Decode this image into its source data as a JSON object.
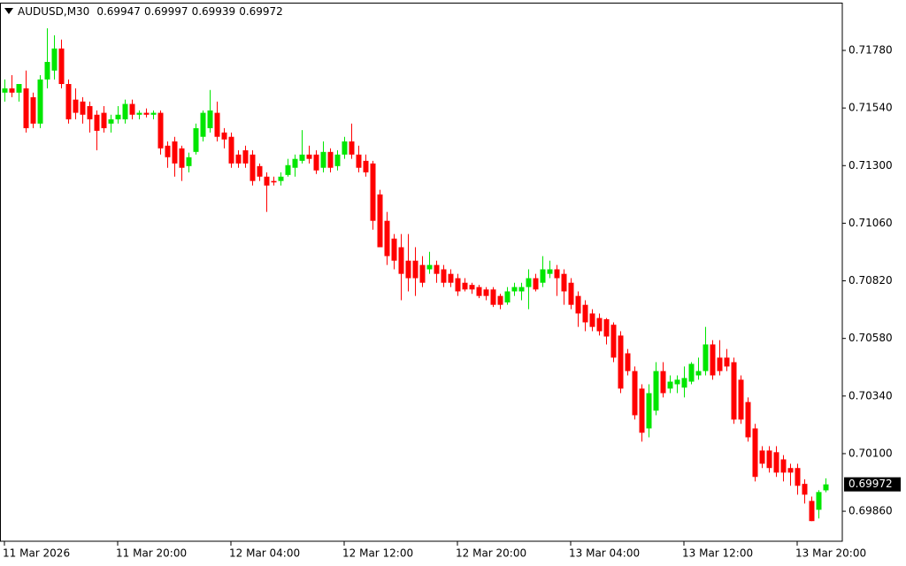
{
  "chart_data": {
    "type": "candlestick",
    "title": "AUDUSD,M30",
    "up_color": "#00e600",
    "down_color": "#ff0000",
    "categories": [
      "11 Mar 2026",
      null,
      null,
      null,
      null,
      null,
      null,
      null,
      null,
      null,
      null,
      null,
      null,
      null,
      null,
      null,
      "11 Mar 20:00",
      null,
      null,
      null,
      null,
      null,
      null,
      null,
      null,
      null,
      null,
      null,
      null,
      null,
      null,
      null,
      "12 Mar 04:00",
      null,
      null,
      null,
      null,
      null,
      null,
      null,
      null,
      null,
      null,
      null,
      null,
      null,
      null,
      null,
      "12 Mar 12:00",
      null,
      null,
      null,
      null,
      null,
      null,
      null,
      null,
      null,
      null,
      null,
      null,
      null,
      null,
      null,
      "12 Mar 20:00",
      null,
      null,
      null,
      null,
      null,
      null,
      null,
      null,
      null,
      null,
      null,
      null,
      null,
      null,
      null,
      "13 Mar 04:00",
      null,
      null,
      null,
      null,
      null,
      null,
      null,
      null,
      null,
      null,
      null,
      null,
      null,
      null,
      null,
      "13 Mar 12:00",
      null,
      null,
      null,
      null,
      null,
      null,
      null,
      null,
      null,
      null,
      null,
      null,
      null,
      null,
      null,
      "13 Mar 20:00",
      null,
      null,
      null,
      null
    ],
    "open": [
      0.71604,
      0.71622,
      0.71604,
      0.71622,
      0.71585,
      0.71475,
      0.71659,
      0.71696,
      0.71788,
      0.7164,
      0.71575,
      0.71567,
      0.71548,
      0.71512,
      0.7152,
      0.71475,
      0.71493,
      0.71493,
      0.71557,
      0.71512,
      0.7152,
      0.71512,
      0.7152,
      0.71383,
      0.71401,
      0.71372,
      0.71298,
      0.71357,
      0.7142,
      0.71456,
      0.7152,
      0.71438,
      0.7142,
      0.71346,
      0.71364,
      0.71346,
      0.71298,
      0.71254,
      0.71236,
      0.71236,
      0.71261,
      0.71291,
      0.7132,
      0.71346,
      0.71346,
      0.71291,
      0.71357,
      0.71298,
      0.71346,
      0.71401,
      0.71346,
      0.7132,
      0.71309,
      0.7118,
      0.7107,
      0.70996,
      0.7096,
      0.70904,
      0.70904,
      0.70886,
      0.70868,
      0.70886,
      0.70868,
      0.70849,
      0.70831,
      0.70812,
      0.70803,
      0.70794,
      0.70784,
      0.70784,
      0.70757,
      0.7073,
      0.70776,
      0.70776,
      0.70794,
      0.70831,
      0.70812,
      0.70849,
      0.70868,
      0.70849,
      0.70812,
      0.70757,
      0.7072,
      0.70684,
      0.70665,
      0.7066,
      0.70637,
      0.70592,
      0.70518,
      0.70444,
      0.70371,
      0.70205,
      0.70279,
      0.70444,
      0.70371,
      0.70389,
      0.70375,
      0.704,
      0.70426,
      0.70444,
      0.70555,
      0.705,
      0.705,
      0.70481,
      0.70408,
      0.70315,
      0.70205,
      0.70113,
      0.70113,
      0.70106,
      0.70076,
      0.7004,
      0.7004,
      0.69974,
      0.69903,
      0.69866,
      0.69947
    ],
    "high": [
      0.71659,
      0.71677,
      0.7164,
      0.71696,
      0.71604,
      0.71677,
      0.71872,
      0.71843,
      0.71825,
      0.71659,
      0.71622,
      0.71585,
      0.71567,
      0.7153,
      0.71548,
      0.71512,
      0.71548,
      0.71575,
      0.71575,
      0.7153,
      0.71538,
      0.7153,
      0.7153,
      0.71401,
      0.7142,
      0.71383,
      0.71354,
      0.71475,
      0.7153,
      0.71615,
      0.71567,
      0.71456,
      0.71438,
      0.71364,
      0.71383,
      0.71364,
      0.71309,
      0.71272,
      0.71254,
      0.71272,
      0.71328,
      0.71346,
      0.71448,
      0.71383,
      0.71364,
      0.71401,
      0.71372,
      0.71364,
      0.7142,
      0.71475,
      0.71383,
      0.71346,
      0.7132,
      0.71199,
      0.71107,
      0.71015,
      0.71015,
      0.71015,
      0.7096,
      0.70923,
      0.70941,
      0.70904,
      0.70886,
      0.70868,
      0.70849,
      0.70831,
      0.70812,
      0.70803,
      0.70794,
      0.70794,
      0.70766,
      0.70794,
      0.70812,
      0.70812,
      0.70868,
      0.70849,
      0.70923,
      0.70904,
      0.70886,
      0.70868,
      0.70831,
      0.70776,
      0.70739,
      0.70702,
      0.70684,
      0.70665,
      0.70647,
      0.7061,
      0.70536,
      0.70463,
      0.70389,
      0.70389,
      0.70481,
      0.70481,
      0.70426,
      0.70426,
      0.70463,
      0.70481,
      0.705,
      0.70628,
      0.70573,
      0.70573,
      0.70536,
      0.705,
      0.70426,
      0.70334,
      0.70224,
      0.70131,
      0.70131,
      0.70131,
      0.70094,
      0.70058,
      0.70058,
      0.69993,
      0.69921,
      0.69948,
      0.69997
    ],
    "low": [
      0.71567,
      0.71585,
      0.71567,
      0.71438,
      0.71456,
      0.71456,
      0.71622,
      0.71659,
      0.71622,
      0.71475,
      0.71493,
      0.71475,
      0.71438,
      0.71364,
      0.71438,
      0.71438,
      0.71475,
      0.71475,
      0.71493,
      0.71493,
      0.71501,
      0.71493,
      0.71346,
      0.71291,
      0.71254,
      0.71236,
      0.71272,
      0.71346,
      0.71401,
      0.71438,
      0.71401,
      0.71372,
      0.71291,
      0.71291,
      0.71291,
      0.71217,
      0.71236,
      0.71107,
      0.71217,
      0.71217,
      0.71254,
      0.71254,
      0.71309,
      0.71309,
      0.71265,
      0.71272,
      0.71272,
      0.7128,
      0.71328,
      0.71328,
      0.71272,
      0.71254,
      0.71033,
      0.7096,
      0.70886,
      0.70868,
      0.70739,
      0.70776,
      0.70757,
      0.70794,
      0.70849,
      0.70812,
      0.70794,
      0.70794,
      0.70757,
      0.70776,
      0.70766,
      0.70748,
      0.70739,
      0.70711,
      0.70702,
      0.7072,
      0.70757,
      0.70739,
      0.70702,
      0.70776,
      0.70794,
      0.70831,
      0.70757,
      0.7072,
      0.70702,
      0.70628,
      0.7061,
      0.7061,
      0.70592,
      0.70555,
      0.70481,
      0.70352,
      0.70426,
      0.70242,
      0.7015,
      0.70168,
      0.7026,
      0.70334,
      0.70352,
      0.70352,
      0.70334,
      0.70389,
      0.70408,
      0.70426,
      0.70408,
      0.70426,
      0.70444,
      0.70224,
      0.70224,
      0.7015,
      0.69984,
      0.7004,
      0.70021,
      0.70003,
      0.69984,
      0.69966,
      0.69929,
      0.69892,
      0.69819,
      0.6983,
      0.69939
    ],
    "close": [
      0.71622,
      0.71604,
      0.7164,
      0.71456,
      0.71475,
      0.71659,
      0.71732,
      0.71788,
      0.7164,
      0.71493,
      0.7152,
      0.71512,
      0.71493,
      0.71445,
      0.71456,
      0.71493,
      0.71512,
      0.71557,
      0.71512,
      0.7152,
      0.71512,
      0.7152,
      0.71372,
      0.71335,
      0.71309,
      0.71291,
      0.71335,
      0.71456,
      0.7152,
      0.7153,
      0.7142,
      0.71409,
      0.71309,
      0.71309,
      0.71309,
      0.71236,
      0.71254,
      0.71217,
      0.7123,
      0.71254,
      0.71302,
      0.71328,
      0.71346,
      0.71328,
      0.7128,
      0.71357,
      0.71291,
      0.71346,
      0.71401,
      0.71346,
      0.71291,
      0.71272,
      0.7107,
      0.7096,
      0.70923,
      0.70904,
      0.70849,
      0.70831,
      0.70831,
      0.70812,
      0.70886,
      0.70849,
      0.70812,
      0.70812,
      0.70776,
      0.70784,
      0.70784,
      0.70757,
      0.70757,
      0.7072,
      0.7072,
      0.70776,
      0.70794,
      0.70794,
      0.70831,
      0.70784,
      0.70868,
      0.70868,
      0.70831,
      0.70776,
      0.7072,
      0.70684,
      0.70647,
      0.70628,
      0.7061,
      0.70588,
      0.705,
      0.70371,
      0.70444,
      0.7026,
      0.70187,
      0.70352,
      0.70444,
      0.70352,
      0.704,
      0.70408,
      0.70415,
      0.70474,
      0.70444,
      0.70555,
      0.70426,
      0.70444,
      0.70463,
      0.70242,
      0.70242,
      0.70168,
      0.70003,
      0.70058,
      0.7004,
      0.70021,
      0.70021,
      0.70021,
      0.69966,
      0.69929,
      0.69819,
      0.6994,
      0.69972
    ],
    "ylim": [
      0.69735,
      0.71979
    ],
    "yticks": [
      {
        "value": 0.6986,
        "label": "0.69860"
      },
      {
        "value": 0.701,
        "label": "0.70100"
      },
      {
        "value": 0.7034,
        "label": "0.70340"
      },
      {
        "value": 0.7058,
        "label": "0.70580"
      },
      {
        "value": 0.7082,
        "label": "0.70820"
      },
      {
        "value": 0.7106,
        "label": "0.71060"
      },
      {
        "value": 0.713,
        "label": "0.71300"
      },
      {
        "value": 0.7154,
        "label": "0.71540"
      },
      {
        "value": 0.7178,
        "label": "0.71780"
      }
    ]
  }
}
